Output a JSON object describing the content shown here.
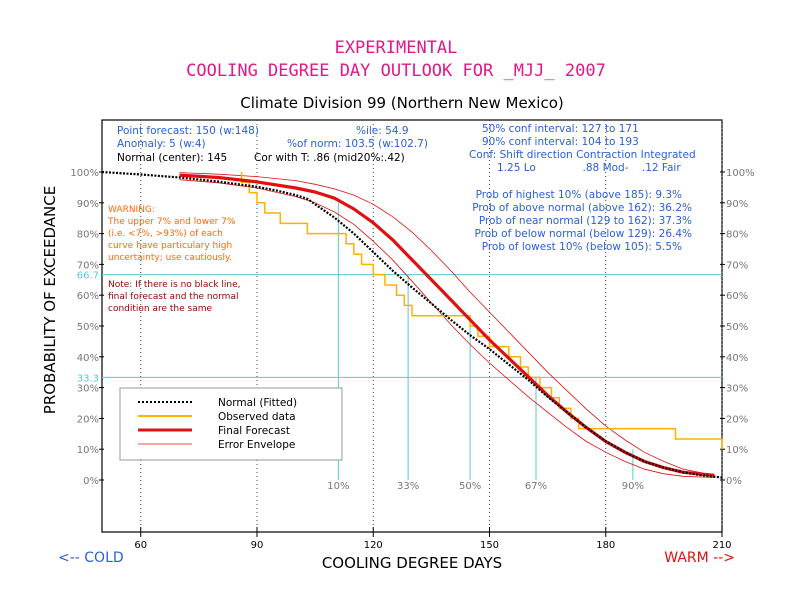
{
  "title_line1": "EXPERIMENTAL",
  "title_line2": "COOLING DEGREE DAY OUTLOOK FOR _MJJ_ 2007",
  "subtitle": "Climate Division 99 (Northern New Mexico)",
  "info": {
    "point_forecast": "Point forecast: 150 (w:148)",
    "anomaly": "Anomaly: 5 (w:4)",
    "normal_center": "Normal (center): 145",
    "cor_with_t": "Cor with T: .86 (mid20%:.42)",
    "pctile": "%ile: 54.9",
    "pct_of_norm": "%of norm: 103.5 (w:102.7)",
    "conf50": "50% conf interval: 127 to 171",
    "conf90": "90% conf interval: 104 to 193",
    "conf_header": "Conf: Shift direction   Contraction   Integrated",
    "conf_values": "1.25 Lo              .88 Mod-    .12 Fair"
  },
  "probabilities": [
    "Prob of highest 10% (above 185): 9.3%",
    "Prob of above normal (above 162): 36.2%",
    "Prob of near normal (129 to 162): 37.3%",
    "Prob of below normal (below 129): 26.4%",
    "Prob of lowest 10% (below 105): 5.5%"
  ],
  "warning_lines": [
    "WARNING:",
    "The upper 7% and lower 7%",
    "(i.e. <7%, >93%) of each",
    "curve have particulary high",
    "uncertainty; use cautiously."
  ],
  "note_lines": [
    "Note: If there is no black line,",
    "final forecast and  the normal",
    "condition are the same"
  ],
  "ylabel": "PROBABILITY OF EXCEEDANCE",
  "xlabel": "COOLING DEGREE DAYS",
  "cold_label": "<-- COLD",
  "warm_label": "WARM -->",
  "colors": {
    "title": "#e0198a",
    "normal": "#000000",
    "observed": "#ffb000",
    "forecast": "#e01010",
    "envelope": "#e01010",
    "info_text": "#2b5fd8",
    "guide_lines": "#5ac8d8"
  },
  "chart_data": {
    "type": "line",
    "xlim": [
      50,
      210
    ],
    "ylim": [
      0,
      100
    ],
    "x_ticks": [
      60,
      90,
      120,
      150,
      180,
      210
    ],
    "y_ticks": [
      0,
      10,
      20,
      30,
      40,
      50,
      60,
      70,
      80,
      90,
      100
    ],
    "y_tick_format": "%",
    "percentile_labels": [
      {
        "label": "10%",
        "x": 111
      },
      {
        "label": "33%",
        "x": 129
      },
      {
        "label": "50%",
        "x": 145
      },
      {
        "label": "67%",
        "x": 162
      },
      {
        "label": "90%",
        "x": 187
      }
    ],
    "reference_levels": [
      {
        "label": "66.7",
        "y": 66.7
      },
      {
        "label": "33.3",
        "y": 33.3
      }
    ],
    "legend_placement": "bottom-left",
    "series": [
      {
        "name": "Normal (Fitted)",
        "style": "dotted-black",
        "x": [
          50,
          60,
          70,
          80,
          90,
          95,
          100,
          103,
          105,
          110,
          115,
          120,
          125,
          130,
          135,
          140,
          145,
          150,
          155,
          160,
          165,
          170,
          175,
          180,
          185,
          190,
          195,
          200,
          205,
          210
        ],
        "y": [
          100,
          99.2,
          98.2,
          96.9,
          95.2,
          94.0,
          92.5,
          91.3,
          89.5,
          85.2,
          80.0,
          74.0,
          68.0,
          62.5,
          57.3,
          52.0,
          47.0,
          42.5,
          37.5,
          32.5,
          27.0,
          22.0,
          17.0,
          12.5,
          9.0,
          6.0,
          4.0,
          2.5,
          1.5,
          0.8
        ]
      },
      {
        "name": "Observed data",
        "style": "step-orange",
        "x": [
          86,
          86,
          88,
          88,
          90,
          90,
          92,
          92,
          96,
          96,
          103,
          103,
          113,
          113,
          115,
          115,
          117,
          117,
          120,
          120,
          123,
          123,
          126,
          126,
          128,
          128,
          130,
          130,
          133,
          133,
          145,
          145,
          147,
          147,
          150,
          150,
          155,
          155,
          158,
          158,
          160,
          160,
          163,
          163,
          166,
          166,
          168,
          168,
          171,
          171,
          173,
          173,
          175,
          175,
          177,
          177,
          198,
          198,
          210,
          210
        ],
        "y": [
          100,
          96.7,
          96.7,
          93.3,
          93.3,
          90.0,
          90.0,
          86.7,
          86.7,
          83.3,
          83.3,
          80.0,
          80.0,
          76.7,
          76.7,
          73.3,
          73.3,
          70.0,
          70.0,
          66.7,
          66.7,
          63.3,
          63.3,
          60.0,
          60.0,
          56.7,
          56.7,
          53.3,
          53.3,
          53.3,
          53.3,
          50.0,
          50.0,
          46.7,
          46.7,
          43.3,
          43.3,
          40.0,
          40.0,
          36.7,
          36.7,
          33.3,
          33.3,
          30.0,
          30.0,
          26.7,
          26.7,
          23.3,
          23.3,
          20.0,
          20.0,
          16.7,
          16.7,
          16.7,
          16.7,
          16.7,
          16.7,
          13.3,
          13.3,
          10.0
        ]
      },
      {
        "name": "Final Forecast",
        "style": "solid-red",
        "x": [
          70,
          80,
          90,
          100,
          105,
          110,
          115,
          120,
          125,
          130,
          135,
          140,
          145,
          150,
          155,
          160,
          165,
          170,
          175,
          180,
          185,
          190,
          195,
          200,
          208
        ],
        "y": [
          99.0,
          98.2,
          96.8,
          94.8,
          93.5,
          91.5,
          88.0,
          83.5,
          78.0,
          71.5,
          65.0,
          58.5,
          52.0,
          45.5,
          39.5,
          33.5,
          27.5,
          22.0,
          17.0,
          12.5,
          9.0,
          6.0,
          4.0,
          2.5,
          1.5
        ]
      },
      {
        "name": "Error Envelope",
        "style": "thin-red",
        "x": [
          70,
          80,
          90,
          100,
          105,
          110,
          115,
          120,
          125,
          130,
          135,
          140,
          145,
          150,
          155,
          160,
          165,
          170,
          175,
          180,
          185,
          190,
          195,
          200,
          208
        ],
        "y": [
          99.8,
          99.3,
          98.5,
          97.2,
          96.0,
          94.5,
          92.5,
          89.5,
          85.5,
          80.5,
          74.5,
          68.0,
          61.0,
          54.5,
          48.0,
          41.5,
          35.0,
          29.0,
          23.0,
          17.5,
          13.0,
          9.0,
          6.0,
          3.5,
          1.5
        ]
      },
      {
        "name": "Error Envelope",
        "style": "thin-red",
        "x": [
          70,
          80,
          90,
          100,
          105,
          110,
          115,
          120,
          125,
          130,
          135,
          140,
          145,
          150,
          155,
          160,
          165,
          170,
          175,
          180,
          185,
          190,
          195,
          200,
          208
        ],
        "y": [
          97.5,
          96.5,
          94.8,
          92.0,
          90.0,
          87.0,
          83.0,
          77.5,
          71.5,
          64.5,
          57.5,
          50.5,
          44.0,
          38.0,
          32.5,
          27.0,
          22.0,
          17.0,
          12.5,
          9.0,
          6.0,
          3.5,
          2.0,
          1.2,
          0.8
        ]
      }
    ]
  }
}
